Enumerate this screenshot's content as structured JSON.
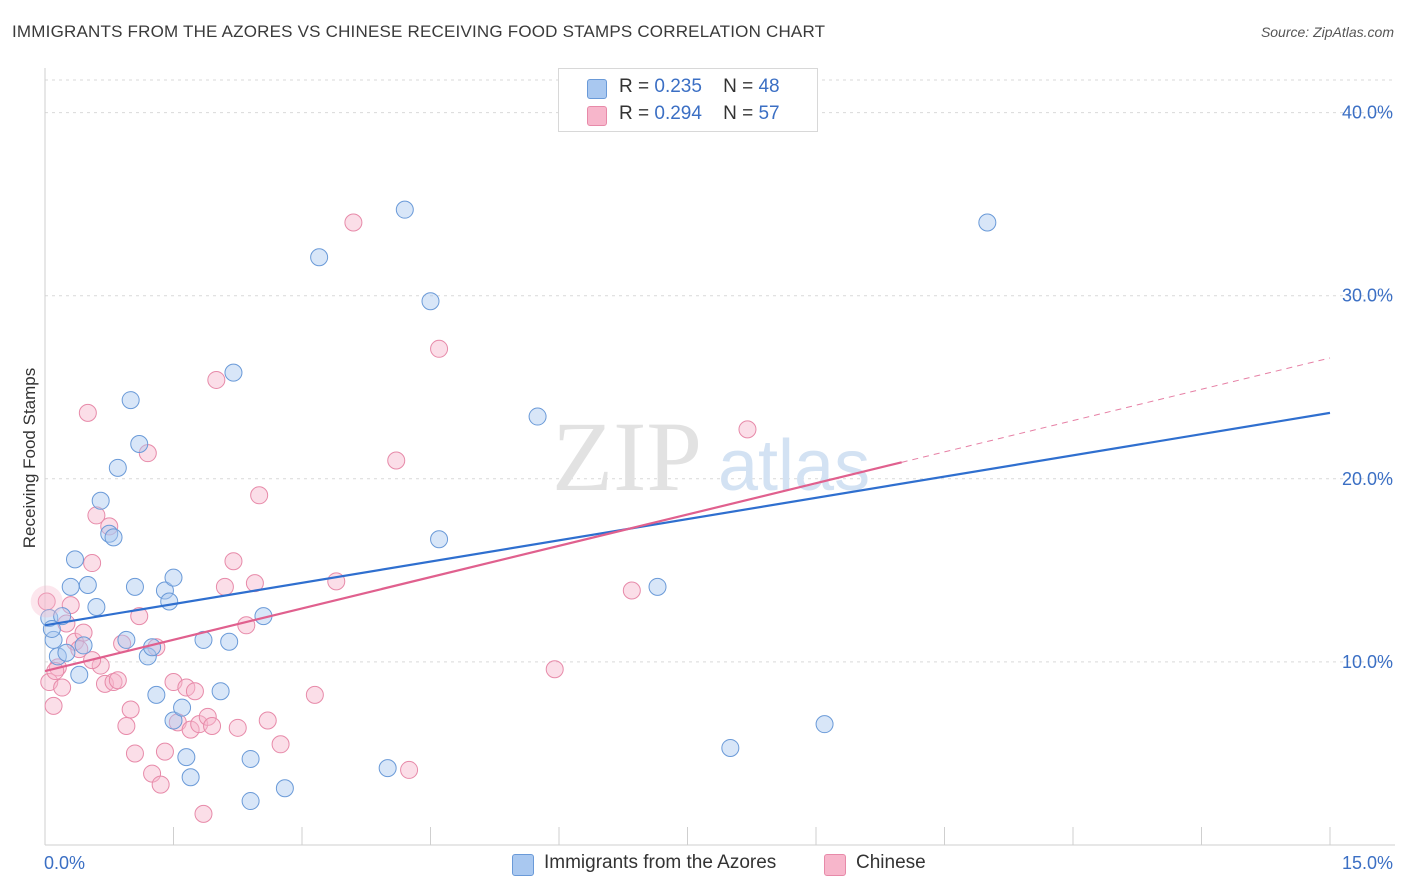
{
  "title": "IMMIGRANTS FROM THE AZORES VS CHINESE RECEIVING FOOD STAMPS CORRELATION CHART",
  "source": "Source: ZipAtlas.com",
  "watermark": {
    "zip": "ZIP",
    "atlas": "atlas"
  },
  "legend": {
    "rows": [
      {
        "r_label": "R =",
        "r_value": "0.235",
        "n_label": "N =",
        "n_value": "48"
      },
      {
        "r_label": "R =",
        "r_value": "0.294",
        "n_label": "N =",
        "n_value": "57"
      }
    ]
  },
  "bottom_legend": {
    "series1": "Immigrants from the Azores",
    "series2": "Chinese"
  },
  "colors": {
    "blue_fill": "#a9c8f0",
    "blue_stroke": "#6a9ad8",
    "blue_line": "#2f6fcf",
    "pink_fill": "#f7b6cb",
    "pink_stroke": "#e78aa9",
    "pink_line": "#e0608e",
    "tick_text": "#3b6fc4",
    "grid": "#d9d9d9"
  },
  "chart_data": {
    "type": "scatter",
    "title": "IMMIGRANTS FROM THE AZORES VS CHINESE RECEIVING FOOD STAMPS CORRELATION CHART",
    "xlabel": "",
    "ylabel": "Receiving Food Stamps",
    "xlim": [
      0,
      15
    ],
    "ylim": [
      0,
      42
    ],
    "x_tick_labels": [
      "0.0%",
      "15.0%"
    ],
    "y_ticks": [
      10,
      20,
      30,
      40
    ],
    "y_tick_labels": [
      "10.0%",
      "20.0%",
      "30.0%",
      "40.0%"
    ],
    "grid": true,
    "series": [
      {
        "name": "Immigrants from the Azores",
        "color": "#a9c8f0",
        "points": [
          [
            0.05,
            12.4
          ],
          [
            0.1,
            11.2
          ],
          [
            0.15,
            10.3
          ],
          [
            0.2,
            12.5
          ],
          [
            0.25,
            10.5
          ],
          [
            0.3,
            14.1
          ],
          [
            0.35,
            15.6
          ],
          [
            0.4,
            9.3
          ],
          [
            0.45,
            10.9
          ],
          [
            0.5,
            14.2
          ],
          [
            0.6,
            13.0
          ],
          [
            0.65,
            18.8
          ],
          [
            0.75,
            17.0
          ],
          [
            0.8,
            16.8
          ],
          [
            0.85,
            20.6
          ],
          [
            0.95,
            11.2
          ],
          [
            1.0,
            24.3
          ],
          [
            1.05,
            14.1
          ],
          [
            1.1,
            21.9
          ],
          [
            1.2,
            10.3
          ],
          [
            1.25,
            10.8
          ],
          [
            1.3,
            8.2
          ],
          [
            1.4,
            13.9
          ],
          [
            1.45,
            13.3
          ],
          [
            1.5,
            6.8
          ],
          [
            1.5,
            14.6
          ],
          [
            1.6,
            7.5
          ],
          [
            1.65,
            4.8
          ],
          [
            1.7,
            3.7
          ],
          [
            1.85,
            11.2
          ],
          [
            2.05,
            8.4
          ],
          [
            2.15,
            11.1
          ],
          [
            2.2,
            25.8
          ],
          [
            2.4,
            4.7
          ],
          [
            2.4,
            2.4
          ],
          [
            2.55,
            12.5
          ],
          [
            2.8,
            3.1
          ],
          [
            3.2,
            32.1
          ],
          [
            4.0,
            4.2
          ],
          [
            4.2,
            34.7
          ],
          [
            4.5,
            29.7
          ],
          [
            4.6,
            16.7
          ],
          [
            5.75,
            23.4
          ],
          [
            7.15,
            14.1
          ],
          [
            8.0,
            5.3
          ],
          [
            9.1,
            6.6
          ],
          [
            11.0,
            34.0
          ],
          [
            0.08,
            11.8
          ]
        ]
      },
      {
        "name": "Chinese",
        "color": "#f7b6cb",
        "points": [
          [
            0.02,
            13.3
          ],
          [
            0.05,
            8.9
          ],
          [
            0.1,
            7.6
          ],
          [
            0.15,
            9.7
          ],
          [
            0.2,
            8.6
          ],
          [
            0.25,
            12.1
          ],
          [
            0.3,
            13.1
          ],
          [
            0.35,
            11.1
          ],
          [
            0.4,
            10.7
          ],
          [
            0.45,
            11.6
          ],
          [
            0.5,
            23.6
          ],
          [
            0.55,
            15.4
          ],
          [
            0.6,
            18.0
          ],
          [
            0.65,
            9.8
          ],
          [
            0.7,
            8.8
          ],
          [
            0.75,
            17.4
          ],
          [
            0.8,
            8.9
          ],
          [
            0.85,
            9.0
          ],
          [
            0.9,
            11.0
          ],
          [
            0.95,
            6.5
          ],
          [
            1.0,
            7.4
          ],
          [
            1.05,
            5.0
          ],
          [
            1.1,
            12.5
          ],
          [
            1.2,
            21.4
          ],
          [
            1.25,
            3.9
          ],
          [
            1.3,
            10.8
          ],
          [
            1.35,
            3.3
          ],
          [
            1.4,
            5.1
          ],
          [
            1.5,
            8.9
          ],
          [
            1.55,
            6.7
          ],
          [
            1.65,
            8.6
          ],
          [
            1.7,
            6.3
          ],
          [
            1.75,
            8.4
          ],
          [
            1.8,
            6.6
          ],
          [
            1.85,
            1.7
          ],
          [
            1.9,
            7.0
          ],
          [
            1.95,
            6.5
          ],
          [
            2.0,
            25.4
          ],
          [
            2.1,
            14.1
          ],
          [
            2.2,
            15.5
          ],
          [
            2.25,
            6.4
          ],
          [
            2.35,
            12.0
          ],
          [
            2.45,
            14.3
          ],
          [
            2.5,
            19.1
          ],
          [
            2.6,
            6.8
          ],
          [
            2.75,
            5.5
          ],
          [
            3.15,
            8.2
          ],
          [
            3.4,
            14.4
          ],
          [
            3.6,
            34.0
          ],
          [
            4.1,
            21.0
          ],
          [
            4.25,
            4.1
          ],
          [
            4.6,
            27.1
          ],
          [
            5.95,
            9.6
          ],
          [
            6.85,
            13.9
          ],
          [
            8.2,
            22.7
          ],
          [
            0.12,
            9.5
          ],
          [
            0.55,
            10.1
          ]
        ]
      }
    ],
    "trend_lines": [
      {
        "series": "Immigrants from the Azores",
        "x": [
          0,
          15
        ],
        "y": [
          12.0,
          23.6
        ],
        "style": "solid"
      },
      {
        "series": "Chinese",
        "x": [
          0,
          10
        ],
        "y": [
          9.5,
          20.9
        ],
        "style": "solid"
      },
      {
        "series": "Chinese",
        "x": [
          10,
          15
        ],
        "y": [
          20.9,
          26.6
        ],
        "style": "dashed"
      }
    ]
  }
}
